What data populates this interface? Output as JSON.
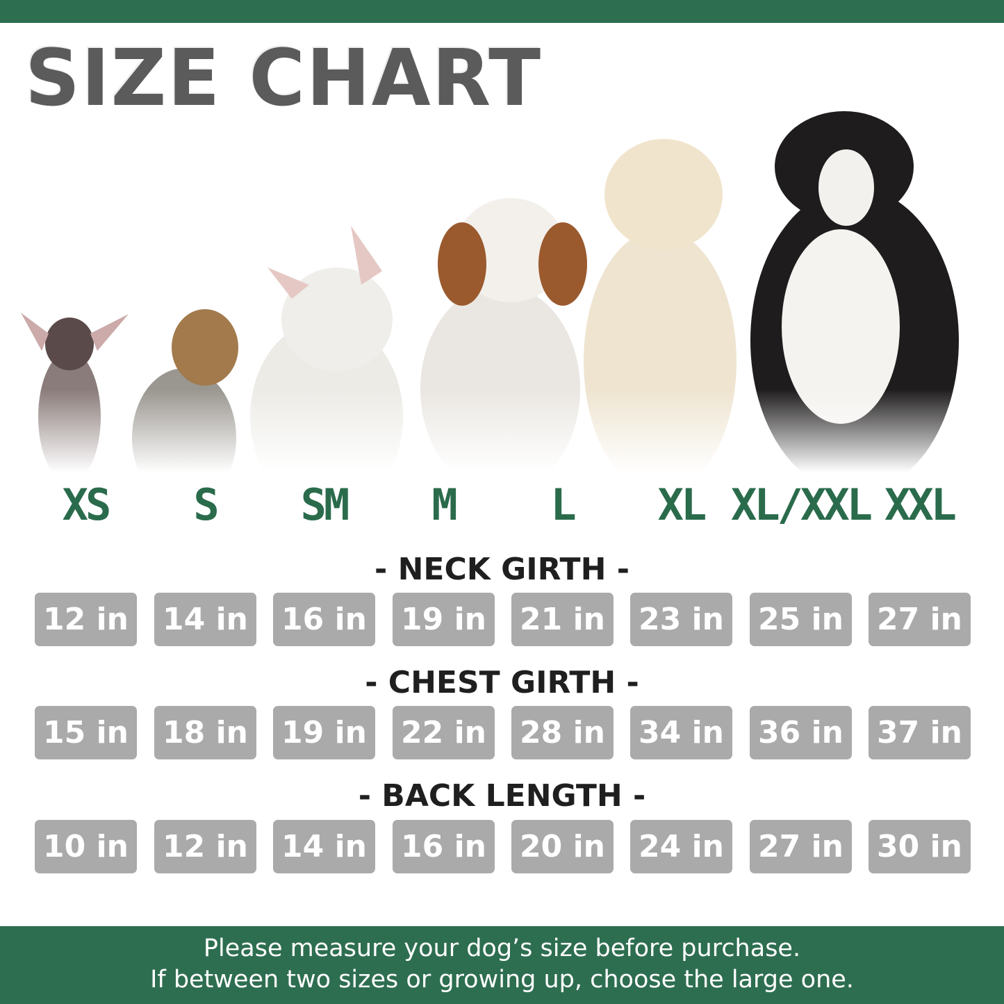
{
  "title": "SIZE CHART",
  "brand_color": "#2e6e50",
  "sizes": [
    "XS",
    "S",
    "SM",
    "M",
    "L",
    "XL",
    "XL/XXL",
    "XXL"
  ],
  "dogs": [
    "chihuahua",
    "yorkshire-terrier",
    "french-bulldog",
    "beagle",
    "golden-retriever",
    "bernese-mountain-dog"
  ],
  "measurements": [
    {
      "label": "- NECK GIRTH -",
      "values": [
        "12 in",
        "14 in",
        "16 in",
        "19 in",
        "21 in",
        "23 in",
        "25 in",
        "27 in"
      ]
    },
    {
      "label": "- CHEST GIRTH -",
      "values": [
        "15 in",
        "18 in",
        "19 in",
        "22 in",
        "28 in",
        "34 in",
        "36 in",
        "37 in"
      ]
    },
    {
      "label": "- BACK LENGTH -",
      "values": [
        "10 in",
        "12 in",
        "14 in",
        "16 in",
        "20 in",
        "24 in",
        "27 in",
        "30 in"
      ]
    }
  ],
  "footer": {
    "line1": "Please measure your dog’s size before purchase.",
    "line2": "If between two sizes or growing up, choose the large one."
  }
}
